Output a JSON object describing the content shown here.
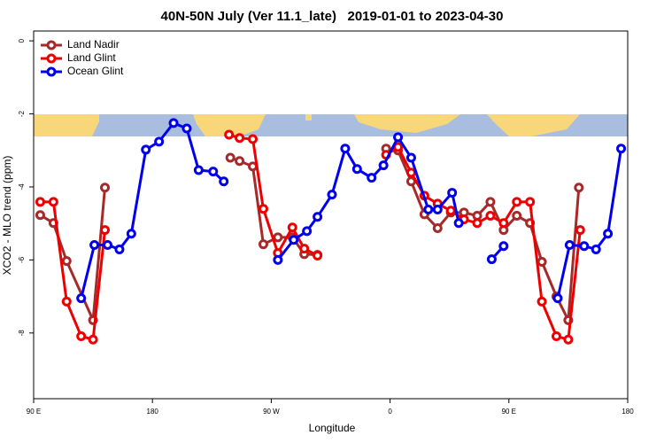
{
  "chart_data": {
    "type": "line",
    "title": "40N-50N July (Ver 11.1_late)   2019-01-01 to 2023-04-30",
    "x_label": "Longitude",
    "y_label": "XCO2 - MLO trend (ppm)",
    "xlim": [
      90,
      540
    ],
    "xticks": [
      {
        "value": 90,
        "label": "90 E"
      },
      180,
      {
        "value": 270,
        "label": "90 W"
      },
      {
        "value": 360,
        "label": "0"
      },
      {
        "value": 450,
        "label": "90 E"
      },
      {
        "value": 540,
        "label": "180"
      }
    ],
    "ylim": [
      -9.8,
      0.27
    ],
    "yticks": [
      0,
      -2,
      -4,
      -6,
      -8
    ],
    "legend": "top-left",
    "series": [
      {
        "name": "Land Nadir",
        "color": "#a52a2a",
        "x": [
          95,
          105,
          115,
          135,
          144,
          null,
          239,
          246,
          256,
          264,
          275,
          286,
          295,
          305,
          null,
          357,
          366,
          376,
          386,
          396,
          406,
          416,
          426,
          436,
          446,
          456,
          466,
          475,
          486,
          495,
          503
        ],
        "values": [
          -4.77,
          -4.99,
          -6.03,
          -7.65,
          -4.02,
          null,
          -3.2,
          -3.29,
          -3.44,
          -5.57,
          -5.38,
          -5.38,
          -5.84,
          -5.86,
          null,
          -2.95,
          -3.0,
          -3.85,
          -4.75,
          -5.13,
          -4.7,
          -4.7,
          -4.79,
          -4.41,
          -5.18,
          -4.79,
          -4.99,
          -6.05,
          -7.0,
          -7.65,
          -4.02
        ]
      },
      {
        "name": "Land Glint",
        "color": "#ee0000",
        "x": [
          95,
          105,
          115,
          126,
          135,
          144,
          null,
          238,
          246,
          256,
          264,
          275,
          286,
          295,
          305,
          null,
          357,
          366,
          376,
          386,
          396,
          406,
          416,
          426,
          436,
          446,
          456,
          466,
          475,
          486,
          495,
          504
        ],
        "values": [
          -4.41,
          -4.41,
          -7.14,
          -8.09,
          -8.18,
          -5.18,
          null,
          -2.57,
          -2.66,
          -2.69,
          -4.6,
          -5.81,
          -5.11,
          -5.69,
          -5.88,
          null,
          -3.12,
          -2.91,
          -3.61,
          -4.24,
          -4.46,
          -4.65,
          -4.89,
          -4.99,
          -4.79,
          -4.99,
          -4.41,
          -4.41,
          -7.14,
          -8.09,
          -8.18,
          -5.18
        ]
      },
      {
        "name": "Ocean Glint",
        "color": "#0000ee",
        "x": [
          126,
          136,
          146,
          155,
          164,
          175,
          185,
          196,
          206,
          215,
          226,
          234,
          null,
          275,
          287,
          297,
          305,
          316,
          326,
          335,
          346,
          355,
          366,
          376,
          389,
          396,
          407,
          412,
          null,
          437,
          446,
          null,
          487,
          496,
          507,
          516,
          525,
          535
        ],
        "values": [
          -7.05,
          -5.59,
          -5.59,
          -5.71,
          -5.28,
          -2.98,
          -2.76,
          -2.25,
          -2.4,
          -3.54,
          -3.58,
          -3.85,
          null,
          -6.0,
          -5.45,
          -5.21,
          -4.82,
          -4.21,
          -2.95,
          -3.51,
          -3.75,
          -3.41,
          -2.64,
          -3.2,
          -4.62,
          -4.62,
          -4.16,
          -4.99,
          null,
          -5.98,
          -5.62,
          null,
          -7.05,
          -5.59,
          -5.62,
          -5.71,
          -5.28,
          -2.95
        ]
      }
    ]
  }
}
